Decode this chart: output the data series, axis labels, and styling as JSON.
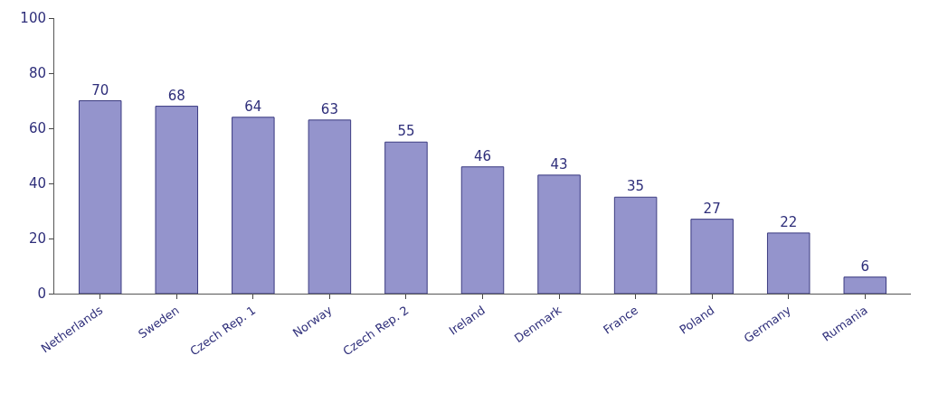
{
  "chart_data": {
    "type": "bar",
    "categories": [
      "Netherlands",
      "Sweden",
      "Czech Rep. 1",
      "Norway",
      "Czech Rep. 2",
      "Ireland",
      "Denmark",
      "France",
      "Poland",
      "Germany",
      "Rumania"
    ],
    "values": [
      70,
      68,
      64,
      63,
      55,
      46,
      43,
      35,
      27,
      22,
      6
    ],
    "color": "#9494cc",
    "ylim": [
      0,
      100
    ],
    "yticks": [
      0,
      20,
      40,
      60,
      80,
      100
    ],
    "data_labels": true
  }
}
